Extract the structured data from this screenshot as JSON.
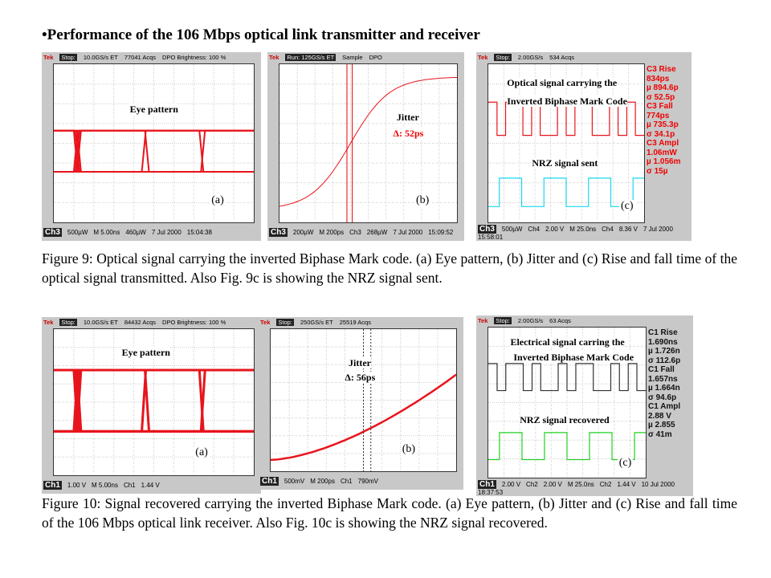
{
  "title": "•Performance of the 106 Mbps optical link transmitter and receiver",
  "figures": [
    {
      "panels": [
        {
          "header": [
            "Tek",
            "Stop:",
            "10.0GS/s ET",
            "77041 Acqs",
            "DPO Brightness: 100 %"
          ],
          "annotations": [
            "Eye pattern"
          ],
          "footer": [
            "Ch3",
            "500µW",
            "M 5.00ns",
            "460µW",
            "7 Jul 2000",
            "15:04:38"
          ],
          "tag": "(a)"
        },
        {
          "header": [
            "Tek",
            "Run: 125GS/s ET",
            "Sample",
            "DPO"
          ],
          "annotations": [
            "Jitter",
            "Δ: 52ps"
          ],
          "footer": [
            "Ch3",
            "200µW",
            "M 200ps",
            "Ch3",
            "268µW",
            "7 Jul 2000",
            "15:09:52"
          ],
          "tag": "(b)"
        },
        {
          "header": [
            "Tek",
            "Stop:",
            "2.00GS/s",
            "534 Acqs"
          ],
          "annotations": [
            "Optical signal carrying the",
            "Inverted Biphase Mark Code",
            "NRZ signal sent"
          ],
          "readouts": [
            "C3 Rise",
            "834ps",
            "µ 894.6p",
            "σ 52.5p",
            "C3 Fall",
            "774ps",
            "µ 735.3p",
            "σ 34.1p",
            "C3 Ampl",
            "1.06mW",
            "µ 1.056m",
            "σ 15µ"
          ],
          "footer": [
            "Ch3",
            "500µW",
            "Ch4",
            "2.00 V",
            "M 25.0ns",
            "Ch4",
            "8.36 V",
            "7 Jul 2000",
            "15:58:01"
          ],
          "tag": "(c)"
        }
      ],
      "caption": "Figure 9: Optical signal carrying the inverted Biphase Mark code. (a) Eye pattern, (b) Jitter and (c) Rise and fall time of the optical signal transmitted. Also Fig. 9c is showing the NRZ signal sent."
    },
    {
      "panels": [
        {
          "header": [
            "Tek",
            "Stop:",
            "10.0GS/s ET",
            "84432 Acqs",
            "DPO Brightness: 100 %"
          ],
          "annotations": [
            "Eye pattern"
          ],
          "footer": [
            "Ch1",
            "1.00 V",
            "M 5.00ns",
            "Ch1",
            "1.44 V"
          ],
          "tag": "(a)"
        },
        {
          "header": [
            "Tek",
            "Stop:",
            "250GS/s ET",
            "25519 Acqs"
          ],
          "annotations": [
            "Jitter",
            "Δ: 56ps"
          ],
          "footer": [
            "Ch1",
            "500mV",
            "M 200ps",
            "Ch1",
            "790mV"
          ],
          "tag": "(b)"
        },
        {
          "header": [
            "Tek",
            "Stop:",
            "2.00GS/s",
            "63 Acqs"
          ],
          "annotations": [
            "Electrical signal carring the",
            "Inverted Biphase Mark Code",
            "NRZ signal recovered"
          ],
          "readouts": [
            "C1 Rise",
            "1.690ns",
            "µ 1.726n",
            "σ 112.6p",
            "C1 Fall",
            "1.657ns",
            "µ 1.664n",
            "σ 94.6p",
            "C1 Ampl",
            "2.88 V",
            "µ 2.855",
            "σ 41m"
          ],
          "footer": [
            "Ch1",
            "2.00 V",
            "Ch2",
            "2.00 V",
            "M 25.0ns",
            "Ch2",
            "1.44 V",
            "10 Jul 2000",
            "18:37:53"
          ],
          "tag": "(c)"
        }
      ],
      "caption": "Figure 10: Signal recovered carrying the inverted Biphase Mark code. (a) Eye pattern, (b) Jitter and (c) Rise and fall time of the 106 Mbps optical link receiver. Also Fig. 10c is showing the NRZ signal recovered."
    }
  ]
}
